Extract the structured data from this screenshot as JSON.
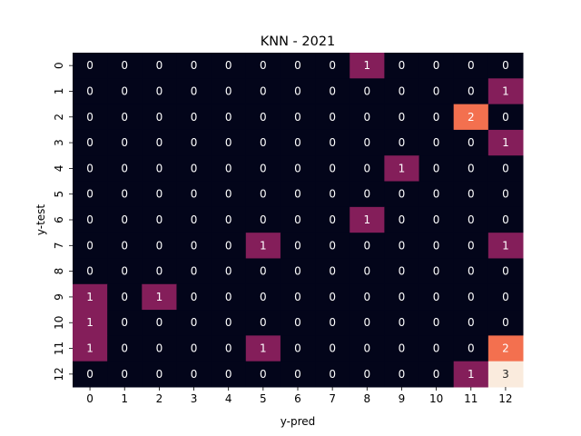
{
  "chart_data": {
    "type": "heatmap",
    "title": "KNN - 2021",
    "xlabel": "y-pred",
    "ylabel": "y-test",
    "x_categories": [
      "0",
      "1",
      "2",
      "3",
      "4",
      "5",
      "6",
      "7",
      "8",
      "9",
      "10",
      "11",
      "12"
    ],
    "y_categories": [
      "0",
      "1",
      "2",
      "3",
      "4",
      "5",
      "6",
      "7",
      "8",
      "9",
      "10",
      "11",
      "12"
    ],
    "values": [
      [
        0,
        0,
        0,
        0,
        0,
        0,
        0,
        0,
        1,
        0,
        0,
        0,
        0
      ],
      [
        0,
        0,
        0,
        0,
        0,
        0,
        0,
        0,
        0,
        0,
        0,
        0,
        1
      ],
      [
        0,
        0,
        0,
        0,
        0,
        0,
        0,
        0,
        0,
        0,
        0,
        2,
        0
      ],
      [
        0,
        0,
        0,
        0,
        0,
        0,
        0,
        0,
        0,
        0,
        0,
        0,
        1
      ],
      [
        0,
        0,
        0,
        0,
        0,
        0,
        0,
        0,
        0,
        1,
        0,
        0,
        0
      ],
      [
        0,
        0,
        0,
        0,
        0,
        0,
        0,
        0,
        0,
        0,
        0,
        0,
        0
      ],
      [
        0,
        0,
        0,
        0,
        0,
        0,
        0,
        0,
        1,
        0,
        0,
        0,
        0
      ],
      [
        0,
        0,
        0,
        0,
        0,
        1,
        0,
        0,
        0,
        0,
        0,
        0,
        1
      ],
      [
        0,
        0,
        0,
        0,
        0,
        0,
        0,
        0,
        0,
        0,
        0,
        0,
        0
      ],
      [
        1,
        0,
        1,
        0,
        0,
        0,
        0,
        0,
        0,
        0,
        0,
        0,
        0
      ],
      [
        1,
        0,
        0,
        0,
        0,
        0,
        0,
        0,
        0,
        0,
        0,
        0,
        0
      ],
      [
        1,
        0,
        0,
        0,
        0,
        1,
        0,
        0,
        0,
        0,
        0,
        0,
        2
      ],
      [
        0,
        0,
        0,
        0,
        0,
        0,
        0,
        0,
        0,
        0,
        0,
        1,
        3
      ]
    ],
    "value_range": [
      0,
      3
    ],
    "colorbar": false,
    "colormap": {
      "0": "#03051a",
      "1": "#841e5a",
      "2": "#f3704f",
      "3": "#faebdd"
    }
  }
}
